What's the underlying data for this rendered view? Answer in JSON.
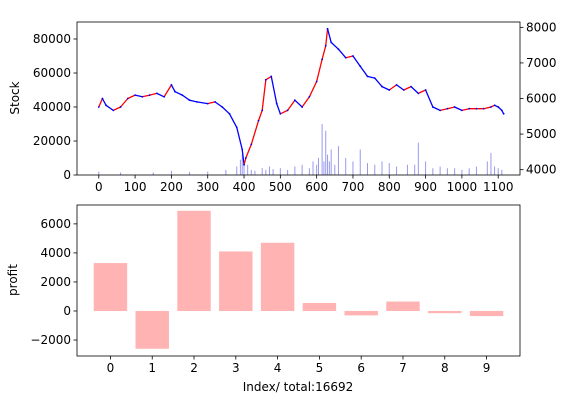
{
  "chart_data": [
    {
      "type": "line",
      "ylabel": "Stock",
      "xlim": [
        -60,
        1160
      ],
      "ylim": [
        0,
        90000
      ],
      "y2lim": [
        3850,
        8150
      ],
      "x_ticks": [
        0,
        100,
        200,
        300,
        400,
        500,
        600,
        700,
        800,
        900,
        1000,
        1100
      ],
      "x_tick_labels": [
        "0",
        "100",
        "200",
        "300",
        "400",
        "500",
        "600",
        "700",
        "800",
        "900",
        "1000",
        "1100"
      ],
      "y_ticks": [
        0,
        20000,
        40000,
        60000,
        80000
      ],
      "y_tick_labels": [
        "0",
        "20000",
        "40000",
        "60000",
        "80000"
      ],
      "y2_ticks": [
        4000,
        5000,
        6000,
        7000,
        8000
      ],
      "y2_tick_labels": [
        "4000",
        "5000",
        "6000",
        "7000",
        "8000"
      ],
      "series": [
        {
          "axis": "left",
          "style": "line",
          "color": "#0000ff",
          "up_color": "#ff0000",
          "x": [
            0,
            10,
            20,
            40,
            60,
            80,
            100,
            120,
            140,
            160,
            180,
            200,
            210,
            230,
            250,
            270,
            300,
            320,
            340,
            360,
            380,
            395,
            400,
            405,
            420,
            440,
            450,
            460,
            475,
            490,
            500,
            520,
            540,
            560,
            580,
            600,
            615,
            625,
            630,
            640,
            660,
            680,
            700,
            720,
            740,
            760,
            780,
            800,
            820,
            840,
            860,
            880,
            900,
            920,
            940,
            960,
            980,
            1000,
            1020,
            1040,
            1060,
            1080,
            1090,
            1100,
            1110,
            1115
          ],
          "values": [
            40000,
            45000,
            41000,
            38000,
            40000,
            45000,
            47000,
            46000,
            47000,
            48000,
            46000,
            53000,
            49000,
            47000,
            44000,
            43000,
            42000,
            43000,
            40000,
            36000,
            28000,
            15000,
            6000,
            10000,
            18000,
            32000,
            38000,
            56000,
            58000,
            42000,
            36000,
            38000,
            44000,
            40000,
            46000,
            55000,
            68000,
            76000,
            86000,
            78000,
            74000,
            69000,
            70000,
            64000,
            58000,
            57000,
            52000,
            50000,
            53000,
            50000,
            52000,
            48000,
            50000,
            40000,
            38000,
            39000,
            40000,
            38000,
            39000,
            39000,
            39000,
            40000,
            41000,
            40000,
            38000,
            36000
          ]
        },
        {
          "axis": "left",
          "style": "volume-bars",
          "color": "#9999ee",
          "x": [
            0,
            60,
            150,
            200,
            250,
            300,
            350,
            380,
            390,
            395,
            400,
            410,
            420,
            430,
            450,
            460,
            470,
            480,
            500,
            520,
            540,
            560,
            580,
            590,
            600,
            605,
            615,
            620,
            625,
            630,
            635,
            640,
            650,
            660,
            680,
            700,
            720,
            740,
            760,
            780,
            800,
            820,
            850,
            870,
            880,
            900,
            920,
            940,
            960,
            980,
            1000,
            1020,
            1040,
            1070,
            1080,
            1090,
            1100,
            1110
          ],
          "values": [
            2000,
            1500,
            1500,
            2500,
            1800,
            2000,
            3000,
            5000,
            9000,
            12000,
            8000,
            6000,
            3000,
            2500,
            4000,
            3000,
            5000,
            3500,
            4000,
            3000,
            5000,
            6000,
            4000,
            8000,
            6000,
            10000,
            30000,
            8000,
            26000,
            12000,
            8000,
            15000,
            6000,
            17000,
            10000,
            8000,
            15000,
            7000,
            6000,
            8000,
            7000,
            5000,
            6000,
            6000,
            19000,
            8000,
            4000,
            5000,
            4000,
            4000,
            3000,
            4000,
            5000,
            8000,
            13000,
            5000,
            4000,
            3000
          ]
        }
      ]
    },
    {
      "type": "bar",
      "xlabel": "Index/ total:16692",
      "ylabel": "profit",
      "categories": [
        "0",
        "1",
        "2",
        "3",
        "4",
        "5",
        "6",
        "7",
        "8",
        "9"
      ],
      "values": [
        3300,
        -2600,
        6900,
        4100,
        4700,
        550,
        -300,
        650,
        -150,
        -350
      ],
      "ylim": [
        -3100,
        7300
      ],
      "y_ticks": [
        -2000,
        0,
        2000,
        4000,
        6000
      ],
      "y_tick_labels": [
        "−2000",
        "0",
        "2000",
        "4000",
        "6000"
      ],
      "color": "#ffb3b3"
    }
  ]
}
